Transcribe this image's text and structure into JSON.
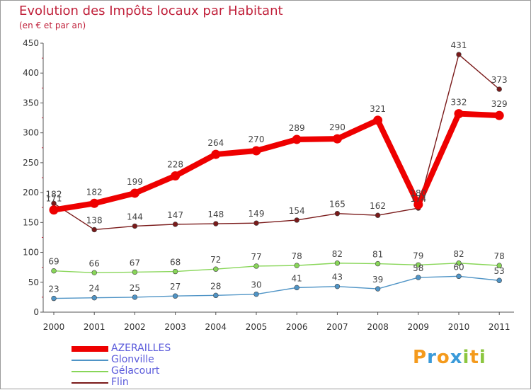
{
  "chart_data": {
    "type": "line",
    "title": "Evolution des Impôts locaux par Habitant",
    "subtitle": "(en € et par an)",
    "xlabel": "",
    "ylabel": "",
    "ylim": [
      0,
      450
    ],
    "yticks": [
      0,
      50,
      100,
      150,
      200,
      250,
      300,
      350,
      400,
      450
    ],
    "categories": [
      "2000",
      "2001",
      "2002",
      "2003",
      "2004",
      "2005",
      "2006",
      "2007",
      "2008",
      "2009",
      "2010",
      "2011"
    ],
    "series": [
      {
        "name": "AZERAILLES",
        "color": "#ee0000",
        "values": [
          171,
          182,
          199,
          228,
          264,
          270,
          289,
          290,
          321,
          180,
          332,
          329
        ],
        "labels": [
          "171",
          "182",
          "199",
          "228",
          "264",
          "270",
          "289",
          "290",
          "321",
          "180",
          "332",
          "329"
        ]
      },
      {
        "name": "Glonville",
        "color": "#4f94c6",
        "values": [
          23,
          24,
          25,
          27,
          28,
          30,
          41,
          43,
          39,
          58,
          60,
          53
        ],
        "labels": [
          "23",
          "24",
          "25",
          "27",
          "28",
          "30",
          "41",
          "43",
          "39",
          "58",
          "60",
          "53"
        ]
      },
      {
        "name": "Gélacourt",
        "color": "#88d658",
        "values": [
          69,
          66,
          67,
          68,
          72,
          77,
          78,
          82,
          81,
          79,
          82,
          78
        ],
        "labels": [
          "69",
          "66",
          "67",
          "68",
          "72",
          "77",
          "78",
          "82",
          "81",
          "79",
          "82",
          "78"
        ]
      },
      {
        "name": "Flin",
        "color": "#7a1a1a",
        "values": [
          182,
          138,
          144,
          147,
          148,
          149,
          154,
          165,
          162,
          174,
          431,
          373
        ],
        "labels": [
          "182",
          "138",
          "144",
          "147",
          "148",
          "149",
          "154",
          "165",
          "162",
          "174",
          "431",
          "373"
        ]
      }
    ],
    "legend_position": "bottom-left",
    "grid": false
  },
  "branding": {
    "letters": [
      "P",
      "r",
      "o",
      "x",
      "i",
      "t",
      "i"
    ],
    "colors": [
      "#f49a1c",
      "#3a9ad9",
      "#f49a1c",
      "#3a9ad9",
      "#8cc63f",
      "#f49a1c",
      "#8cc63f"
    ]
  }
}
